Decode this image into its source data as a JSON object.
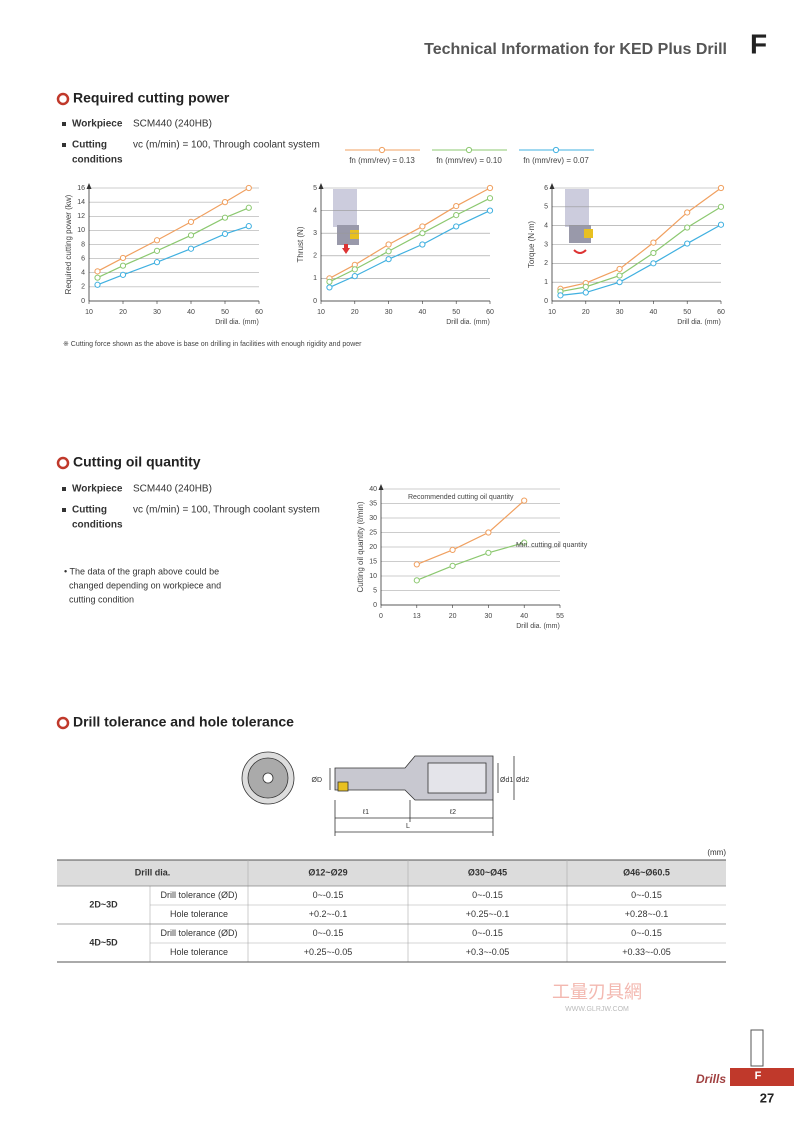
{
  "header": {
    "title": "Technical Information for KED Plus Drill",
    "letter": "F"
  },
  "section1": {
    "title": "Required cutting power",
    "workpiece_label": "Workpiece",
    "workpiece": "SCM440 (240HB)",
    "cutting_label": [
      "Cutting",
      "conditions"
    ],
    "cutting": "vc (m/min) = 100, Through coolant system",
    "note": "※ Cutting force shown as the above is base on drilling in facilities with enough rigidity and power"
  },
  "chart_data": [
    {
      "type": "line",
      "ylabel": "Required cutting power (kw)",
      "xlabel": "Drill dia. (mm)",
      "x": [
        12.5,
        20,
        30,
        40,
        50,
        57
      ],
      "xlim": [
        10,
        60
      ],
      "xticks": [
        10,
        20,
        30,
        40,
        50,
        60
      ],
      "ylim": [
        0,
        16
      ],
      "yticks": [
        0,
        2,
        4,
        6,
        8,
        10,
        12,
        14,
        16
      ],
      "grid": true,
      "series": [
        {
          "name": "fn (mm/rev) = 0.13",
          "color": "#f0a060",
          "values": [
            4.2,
            6.1,
            8.6,
            11.2,
            14,
            16
          ]
        },
        {
          "name": "fn (mm/rev) = 0.10",
          "color": "#8cc870",
          "values": [
            3.3,
            5,
            7.1,
            9.3,
            11.8,
            13.2
          ]
        },
        {
          "name": "fn (mm/rev) = 0.07",
          "color": "#40b0e0",
          "values": [
            2.3,
            3.7,
            5.5,
            7.4,
            9.5,
            10.6
          ]
        }
      ]
    },
    {
      "type": "line",
      "ylabel": "Thrust (N)",
      "xlabel": "Drill dia. (mm)",
      "x": [
        12.5,
        20,
        30,
        40,
        50,
        60
      ],
      "xlim": [
        10,
        60
      ],
      "xticks": [
        10,
        20,
        30,
        40,
        50,
        60
      ],
      "ylim": [
        0,
        5
      ],
      "yticks": [
        0,
        1,
        2,
        3,
        4,
        5
      ],
      "grid": true,
      "series": [
        {
          "color": "#f0a060",
          "values": [
            1.0,
            1.6,
            2.5,
            3.3,
            4.2,
            5.0
          ]
        },
        {
          "color": "#8cc870",
          "values": [
            0.85,
            1.4,
            2.2,
            3.0,
            3.8,
            4.55
          ]
        },
        {
          "color": "#40b0e0",
          "values": [
            0.6,
            1.1,
            1.85,
            2.5,
            3.3,
            4.0
          ]
        }
      ]
    },
    {
      "type": "line",
      "ylabel": "Torque (N·m)",
      "xlabel": "Drill dia. (mm)",
      "x": [
        12.5,
        20,
        30,
        40,
        50,
        60
      ],
      "xlim": [
        10,
        60
      ],
      "xticks": [
        10,
        20,
        30,
        40,
        50,
        60
      ],
      "ylim": [
        0,
        6
      ],
      "yticks": [
        0,
        1,
        2,
        3,
        4,
        5,
        6
      ],
      "grid": true,
      "series": [
        {
          "color": "#f0a060",
          "values": [
            0.65,
            0.95,
            1.7,
            3.1,
            4.7,
            6.0
          ]
        },
        {
          "color": "#8cc870",
          "values": [
            0.5,
            0.75,
            1.35,
            2.55,
            3.9,
            5.0
          ]
        },
        {
          "color": "#40b0e0",
          "values": [
            0.3,
            0.45,
            1.0,
            2.0,
            3.05,
            4.05
          ]
        }
      ]
    },
    {
      "type": "line",
      "ylabel": "Cutting oil quantity (ℓ/min)",
      "xlabel": "Drill dia. (mm)",
      "categories": [
        "0",
        "13",
        "20",
        "30",
        "40",
        "55"
      ],
      "ylim": [
        0,
        40
      ],
      "yticks": [
        0,
        5,
        10,
        15,
        20,
        25,
        30,
        35,
        40
      ],
      "grid": true,
      "annotations": [
        "Recommended cutting oil quantity",
        "Min. cutting oil quantity"
      ],
      "series": [
        {
          "color": "#f0a060",
          "values": [
            null,
            14,
            19,
            25,
            36,
            null
          ]
        },
        {
          "color": "#8cc870",
          "values": [
            null,
            8.5,
            13.5,
            18,
            21.5,
            null
          ]
        }
      ]
    }
  ],
  "section2": {
    "title": "Cutting oil quantity",
    "workpiece_label": "Workpiece",
    "workpiece": "SCM440 (240HB)",
    "cutting_label": [
      "Cutting",
      "conditions"
    ],
    "cutting": "vc (m/min) = 100, Through coolant system",
    "note": [
      "• The data of the graph above could be",
      "changed depending on workpiece and",
      "cutting condition"
    ]
  },
  "section3": {
    "title": "Drill tolerance and hole tolerance",
    "diagram": [
      "ØD",
      "Ød1",
      "Ød2",
      "ℓ1",
      "ℓ2",
      "L"
    ]
  },
  "table": {
    "unit": "(mm)",
    "header": [
      "Drill dia.",
      "Ø12~Ø29",
      "Ø30~Ø45",
      "Ø46~Ø60.5"
    ],
    "groups": [
      {
        "name": "2D~3D",
        "rows": [
          {
            "label": "Drill tolerance (ØD)",
            "values": [
              "0~-0.15",
              "0~-0.15",
              "0~-0.15"
            ]
          },
          {
            "label": "Hole tolerance",
            "values": [
              "+0.2~-0.1",
              "+0.25~-0.1",
              "+0.28~-0.1"
            ]
          }
        ]
      },
      {
        "name": "4D~5D",
        "rows": [
          {
            "label": "Drill tolerance (ØD)",
            "values": [
              "0~-0.15",
              "0~-0.15",
              "0~-0.15"
            ]
          },
          {
            "label": "Hole tolerance",
            "values": [
              "+0.25~-0.05",
              "+0.3~-0.05",
              "+0.33~-0.05"
            ]
          }
        ]
      }
    ]
  },
  "watermark": [
    "工量刃具網",
    "WWW.GLRJW.COM"
  ],
  "footer": {
    "section": "Drills",
    "letter": "F",
    "page": "27"
  }
}
